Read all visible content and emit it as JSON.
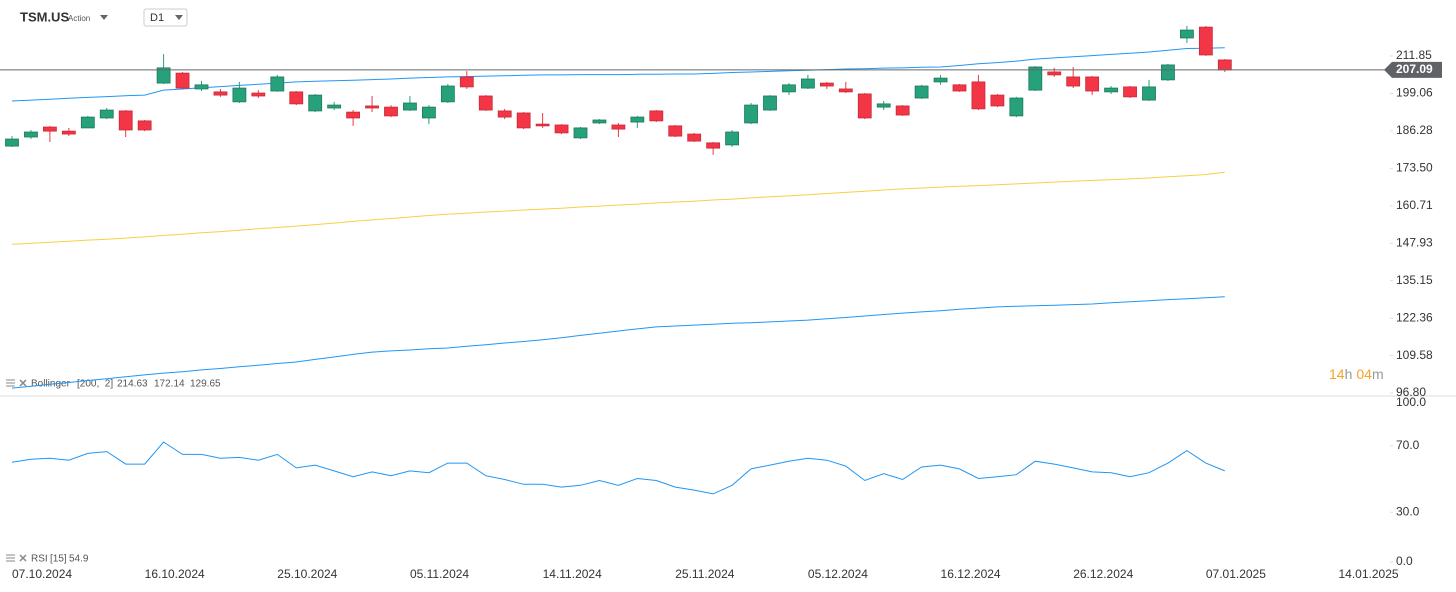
{
  "chart_data": [
    {
      "type": "candlestick",
      "title": "TSM.US",
      "subtitle": "Action",
      "timeframe": "D1",
      "countdown": {
        "hours": "14",
        "hours_unit": "h",
        "minutes": "04",
        "minutes_unit": "m"
      },
      "indicator": {
        "name": "Bollinger",
        "params": "[200,  2]"
      },
      "up_color": "#26a17b",
      "down_color": "#f23645",
      "open": [
        181.1,
        184.2,
        187.6,
        186.2,
        187.3,
        190.7,
        193.1,
        189.7,
        202.6,
        206.0,
        200.6,
        199.6,
        196.2,
        199.2,
        199.9,
        199.6,
        193.1,
        194.1,
        192.7,
        194.8,
        194.4,
        193.4,
        190.7,
        196.2,
        204.7,
        198.2,
        193.1,
        192.4,
        188.6,
        188.3,
        183.9,
        189.0,
        188.3,
        189.3,
        193.1,
        188.0,
        185.2,
        182.2,
        181.5,
        189.0,
        193.4,
        199.6,
        200.9,
        202.6,
        200.6,
        198.9,
        194.4,
        194.8,
        197.5,
        203.0,
        202.0,
        203.0,
        198.5,
        191.4,
        200.2,
        206.4,
        204.7,
        204.7,
        199.6,
        201.3,
        196.8,
        203.7,
        218.0,
        221.7,
        210.5,
        null,
        null,
        null,
        null,
        null,
        null
      ],
      "high": [
        184.5,
        186.6,
        188.0,
        187.3,
        191.4,
        194.1,
        193.4,
        190.0,
        212.5,
        206.4,
        203.3,
        200.6,
        203.0,
        200.2,
        205.4,
        199.9,
        198.9,
        196.2,
        193.4,
        198.2,
        195.1,
        198.2,
        195.1,
        202.3,
        206.7,
        198.5,
        193.8,
        192.7,
        192.4,
        188.6,
        187.6,
        190.3,
        189.0,
        191.4,
        193.4,
        188.3,
        185.6,
        182.5,
        186.6,
        195.8,
        198.5,
        202.6,
        205.4,
        203.0,
        203.0,
        199.2,
        196.5,
        195.1,
        202.0,
        205.4,
        202.3,
        205.4,
        198.9,
        197.9,
        208.4,
        207.8,
        208.1,
        205.0,
        201.6,
        201.6,
        203.7,
        209.1,
        222.1,
        222.1,
        210.8,
        null,
        null,
        null,
        null,
        null,
        null
      ],
      "low": [
        180.8,
        183.5,
        182.5,
        184.5,
        187.3,
        190.3,
        184.2,
        186.2,
        202.3,
        200.6,
        199.9,
        197.9,
        195.8,
        197.5,
        199.6,
        195.1,
        192.7,
        193.4,
        188.0,
        192.7,
        191.0,
        193.1,
        188.6,
        195.8,
        200.6,
        193.1,
        190.3,
        186.9,
        187.3,
        185.2,
        183.5,
        188.6,
        184.2,
        187.3,
        189.3,
        184.2,
        182.5,
        178.1,
        180.8,
        188.6,
        193.1,
        198.5,
        200.6,
        200.6,
        199.2,
        190.3,
        193.4,
        191.4,
        197.2,
        202.0,
        199.6,
        193.4,
        194.4,
        191.0,
        199.9,
        204.7,
        200.9,
        198.5,
        198.9,
        197.5,
        196.5,
        203.3,
        216.3,
        211.9,
        206.4,
        null,
        null,
        null,
        null,
        null,
        null
      ],
      "close": [
        183.5,
        185.9,
        186.2,
        185.2,
        191.0,
        193.4,
        186.6,
        186.6,
        207.8,
        200.9,
        202.0,
        198.5,
        200.9,
        198.2,
        204.7,
        195.5,
        198.5,
        195.1,
        190.7,
        194.1,
        191.4,
        195.8,
        194.4,
        201.6,
        201.3,
        193.4,
        191.0,
        187.3,
        188.0,
        185.6,
        187.3,
        190.0,
        186.9,
        191.0,
        189.7,
        184.5,
        182.8,
        180.4,
        185.9,
        195.1,
        198.2,
        202.0,
        204.0,
        201.6,
        199.6,
        190.7,
        195.5,
        191.7,
        201.6,
        204.3,
        199.9,
        193.8,
        194.8,
        197.5,
        208.1,
        205.4,
        201.6,
        199.9,
        200.9,
        197.9,
        201.3,
        208.8,
        220.7,
        212.2,
        207.09,
        null,
        null,
        null,
        null,
        null,
        null
      ],
      "series": [
        {
          "color": "#2196f3",
          "values": [
            196.5,
            196.8,
            197.1,
            197.4,
            197.7,
            198.0,
            198.3,
            198.5,
            200.2,
            200.6,
            201.0,
            201.4,
            201.8,
            202.2,
            202.6,
            203.0,
            203.2,
            203.4,
            203.6,
            203.8,
            204.0,
            204.3,
            204.5,
            204.7,
            204.8,
            205.0,
            205.1,
            205.3,
            205.4,
            205.4,
            205.5,
            205.5,
            205.5,
            205.6,
            205.6,
            205.7,
            205.7,
            205.9,
            206.2,
            206.4,
            206.6,
            206.8,
            207.0,
            207.2,
            207.4,
            207.5,
            207.7,
            207.8,
            208.0,
            208.1,
            208.6,
            209.2,
            209.6,
            210.1,
            210.8,
            211.2,
            211.6,
            212.0,
            212.4,
            212.8,
            213.2,
            213.8,
            214.4,
            214.5,
            214.63,
            null,
            null,
            null,
            null,
            null,
            null
          ]
        },
        {
          "color": "#f5d142",
          "values": [
            147.6,
            147.9,
            148.3,
            148.6,
            149.0,
            149.3,
            149.7,
            150.1,
            150.6,
            151.0,
            151.5,
            151.9,
            152.4,
            152.9,
            153.3,
            153.8,
            154.3,
            154.8,
            155.4,
            155.9,
            156.4,
            156.9,
            157.4,
            157.9,
            158.2,
            158.6,
            158.9,
            159.3,
            159.6,
            159.9,
            160.3,
            160.6,
            161.0,
            161.3,
            161.7,
            162.0,
            162.3,
            162.7,
            163.0,
            163.4,
            163.8,
            164.1,
            164.5,
            164.9,
            165.3,
            165.7,
            166.1,
            166.5,
            166.8,
            167.1,
            167.4,
            167.6,
            167.9,
            168.2,
            168.5,
            168.8,
            169.1,
            169.4,
            169.6,
            169.9,
            170.2,
            170.6,
            171.0,
            171.4,
            172.14,
            null,
            null,
            null,
            null,
            null,
            null
          ]
        },
        {
          "color": "#2196f3",
          "values": [
            98.5,
            99.1,
            99.8,
            100.4,
            101.1,
            101.7,
            102.4,
            103.0,
            103.6,
            104.1,
            104.7,
            105.2,
            105.8,
            106.3,
            106.9,
            107.4,
            108.3,
            109.1,
            110.0,
            110.8,
            111.2,
            111.5,
            111.9,
            112.2,
            112.8,
            113.3,
            113.9,
            114.4,
            115.0,
            115.7,
            116.5,
            117.2,
            118.0,
            118.7,
            119.4,
            119.7,
            120.0,
            120.3,
            120.6,
            120.8,
            121.1,
            121.4,
            121.7,
            122.2,
            122.6,
            123.1,
            123.6,
            124.1,
            124.5,
            124.9,
            125.4,
            125.8,
            126.2,
            126.4,
            126.6,
            126.8,
            127.0,
            127.2,
            127.6,
            128.0,
            128.3,
            128.7,
            129.0,
            129.3,
            129.65,
            null,
            null,
            null,
            null,
            null,
            null
          ]
        }
      ],
      "ylim": [
        95.8,
        230.96
      ],
      "yticks": [
        {
          "value": 96.8,
          "label": "96.80"
        },
        109.58,
        122.36,
        135.15,
        147.93,
        160.71,
        {
          "value": 173.5,
          "label": "173.50"
        },
        186.28,
        199.06,
        211.85
      ]
    },
    {
      "type": "line",
      "indicator": {
        "name": "RSI",
        "params": "[15]"
      },
      "categories": [
        "07.10.2024",
        null,
        null,
        null,
        null,
        null,
        null,
        "16.10.2024",
        null,
        null,
        null,
        null,
        null,
        null,
        "25.10.2024",
        null,
        null,
        null,
        null,
        null,
        null,
        "05.11.2024",
        null,
        null,
        null,
        null,
        null,
        null,
        "14.11.2024",
        null,
        null,
        null,
        null,
        null,
        null,
        "25.11.2024",
        null,
        null,
        null,
        null,
        null,
        null,
        "05.12.2024",
        null,
        null,
        null,
        null,
        null,
        null,
        "16.12.2024",
        null,
        null,
        null,
        null,
        null,
        null,
        "26.12.2024",
        null,
        null,
        null,
        null,
        null,
        null,
        "07.01.2025",
        null,
        null,
        null,
        null,
        null,
        null,
        "14.01.2025"
      ],
      "series": [
        {
          "color": "#2196f3",
          "values": [
            60.1,
            61.9,
            62.5,
            61.3,
            65.4,
            66.5,
            59.0,
            59.0,
            72.3,
            64.8,
            64.8,
            62.5,
            63.0,
            61.3,
            64.8,
            56.7,
            58.4,
            54.9,
            51.4,
            54.3,
            52.0,
            54.9,
            53.8,
            59.6,
            59.6,
            52.0,
            49.7,
            46.8,
            46.8,
            45.1,
            46.2,
            49.1,
            46.2,
            50.3,
            49.1,
            45.1,
            43.3,
            41.0,
            46.2,
            56.1,
            58.4,
            60.7,
            62.5,
            61.3,
            57.8,
            49.1,
            53.2,
            49.7,
            57.2,
            58.4,
            56.1,
            50.3,
            51.4,
            52.6,
            60.7,
            59.0,
            56.7,
            54.3,
            53.8,
            51.4,
            53.8,
            59.6,
            67.1,
            59.6,
            54.9,
            null,
            null,
            null,
            null,
            null,
            null
          ]
        }
      ],
      "ylim": [
        0,
        100
      ],
      "yticks": [
        {
          "value": 0,
          "label": "0.0"
        },
        {
          "value": 30,
          "label": "30.0"
        },
        {
          "value": 70,
          "label": "70.0"
        },
        {
          "value": 100,
          "label": "100.0"
        }
      ]
    }
  ]
}
